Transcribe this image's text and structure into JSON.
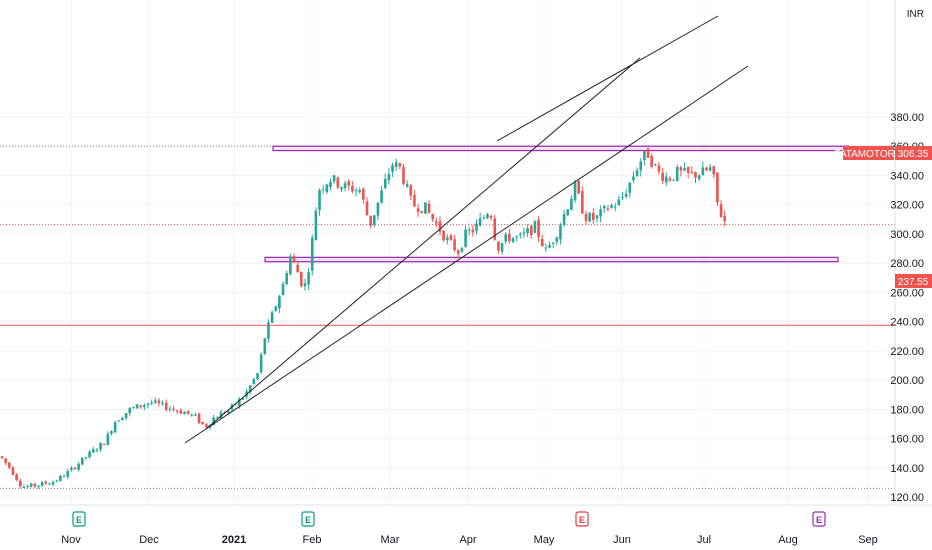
{
  "chart_data": {
    "type": "candlestick",
    "symbol": "TATAMOTORS",
    "currency": "INR",
    "last_price": "306.35",
    "marked_level": "237.55",
    "ylim": [
      115,
      380
    ],
    "y_ticks": [
      "120.00",
      "140.00",
      "160.00",
      "180.00",
      "200.00",
      "220.00",
      "240.00",
      "260.00",
      "280.00",
      "300.00",
      "320.00",
      "340.00",
      "360.00",
      "380.00"
    ],
    "x_ticks": [
      "Nov",
      "Dec",
      "2021",
      "Feb",
      "Mar",
      "Apr",
      "May",
      "Jun",
      "Jul",
      "Aug",
      "Sep"
    ],
    "series_monthly_summary": [
      {
        "month": "Oct 2020",
        "start": 145,
        "end": 128
      },
      {
        "month": "Nov 2020",
        "start": 130,
        "end": 175
      },
      {
        "month": "Dec 2020",
        "start": 178,
        "end": 185
      },
      {
        "month": "Jan 2021",
        "start": 185,
        "end": 275
      },
      {
        "month": "Feb 2021",
        "start": 285,
        "end": 330
      },
      {
        "month": "Mar 2021",
        "start": 330,
        "end": 300
      },
      {
        "month": "Apr 2021",
        "start": 290,
        "end": 300
      },
      {
        "month": "May 2021",
        "start": 295,
        "end": 330
      },
      {
        "month": "Jun 2021",
        "start": 335,
        "end": 340
      },
      {
        "month": "Jul 2021",
        "start": 345,
        "end": 306
      }
    ],
    "horizontal_zones": [
      {
        "low": 357,
        "high": 360,
        "color": "#9c27b0"
      },
      {
        "low": 281,
        "high": 284,
        "color": "#9c27b0"
      }
    ],
    "horizontal_lines": [
      {
        "value": 360,
        "style": "dotted",
        "color": "#888888"
      },
      {
        "value": 306.35,
        "style": "dotted",
        "color": "#ef5350"
      },
      {
        "value": 237.55,
        "style": "solid",
        "color": "#ef5350"
      },
      {
        "value": 126,
        "style": "dotted",
        "color": "#888888"
      }
    ],
    "earnings_markers": [
      {
        "month": "Nov",
        "letter": "E",
        "color": "#089981"
      },
      {
        "month": "Feb",
        "letter": "E",
        "color": "#089981"
      },
      {
        "month": "May",
        "letter": "E",
        "color": "#f23645"
      },
      {
        "month": "Aug",
        "letter": "E",
        "color": "#9c27b0"
      }
    ],
    "colors": {
      "up": "#26a69a",
      "down": "#ef5350",
      "zone": "#9c27b0",
      "price_tag": "#ef5350"
    }
  }
}
